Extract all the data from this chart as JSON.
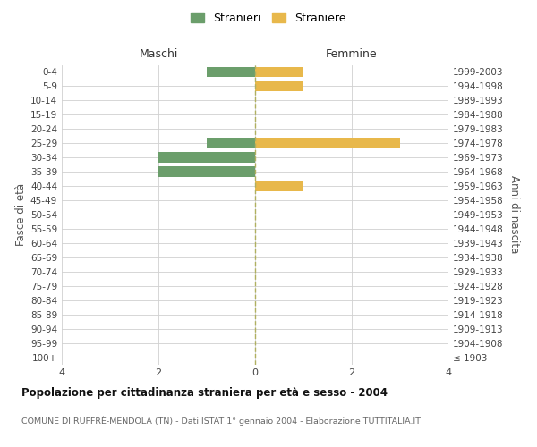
{
  "age_groups": [
    "0-4",
    "5-9",
    "10-14",
    "15-19",
    "20-24",
    "25-29",
    "30-34",
    "35-39",
    "40-44",
    "45-49",
    "50-54",
    "55-59",
    "60-64",
    "65-69",
    "70-74",
    "75-79",
    "80-84",
    "85-89",
    "90-94",
    "95-99",
    "100+"
  ],
  "birth_years": [
    "1999-2003",
    "1994-1998",
    "1989-1993",
    "1984-1988",
    "1979-1983",
    "1974-1978",
    "1969-1973",
    "1964-1968",
    "1959-1963",
    "1954-1958",
    "1949-1953",
    "1944-1948",
    "1939-1943",
    "1934-1938",
    "1929-1933",
    "1924-1928",
    "1919-1923",
    "1914-1918",
    "1909-1913",
    "1904-1908",
    "≤ 1903"
  ],
  "maschi": [
    1,
    0,
    0,
    0,
    0,
    1,
    2,
    2,
    0,
    0,
    0,
    0,
    0,
    0,
    0,
    0,
    0,
    0,
    0,
    0,
    0
  ],
  "femmine": [
    1,
    1,
    0,
    0,
    0,
    3,
    0,
    0,
    1,
    0,
    0,
    0,
    0,
    0,
    0,
    0,
    0,
    0,
    0,
    0,
    0
  ],
  "color_maschi": "#6b9e6b",
  "color_femmine": "#e8b84b",
  "title_main": "Popolazione per cittadinanza straniera per età e sesso - 2004",
  "title_sub": "COMUNE DI RUFFRÈ-MENDOLA (TN) - Dati ISTAT 1° gennaio 2004 - Elaborazione TUTTITALIA.IT",
  "xlabel_left": "Maschi",
  "xlabel_right": "Femmine",
  "ylabel_left": "Fasce di età",
  "ylabel_right": "Anni di nascita",
  "legend_maschi": "Stranieri",
  "legend_femmine": "Straniere",
  "xlim": 4,
  "background_color": "#ffffff",
  "grid_color": "#d0d0d0",
  "dashed_line_color": "#b0b060"
}
